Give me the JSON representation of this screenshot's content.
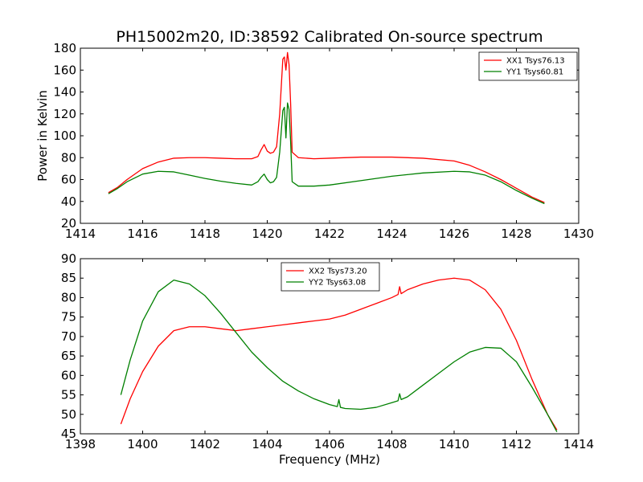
{
  "figure": {
    "title": "PH15002m20, ID:38592 Calibrated On-source spectrum"
  },
  "chart_data": [
    {
      "type": "line",
      "title": "PH15002m20, ID:38592 Calibrated On-source spectrum",
      "xlabel": "",
      "ylabel": "Power in Kelvin",
      "xlim": [
        1414,
        1430
      ],
      "ylim": [
        20,
        180
      ],
      "xticks": [
        1414,
        1416,
        1418,
        1420,
        1422,
        1424,
        1426,
        1428,
        1430
      ],
      "yticks": [
        20,
        40,
        60,
        80,
        100,
        120,
        140,
        160,
        180
      ],
      "grid": false,
      "legend": "top-right",
      "series": [
        {
          "name": "XX1 Tsys76.13",
          "color": "#ff0000",
          "x": [
            1414.9,
            1415.2,
            1415.5,
            1416.0,
            1416.5,
            1417.0,
            1417.5,
            1418.0,
            1418.5,
            1419.0,
            1419.5,
            1419.7,
            1419.8,
            1419.9,
            1420.0,
            1420.1,
            1420.2,
            1420.3,
            1420.4,
            1420.5,
            1420.55,
            1420.6,
            1420.65,
            1420.7,
            1420.75,
            1420.8,
            1421.0,
            1421.5,
            1422.0,
            1423.0,
            1424.0,
            1425.0,
            1426.0,
            1426.5,
            1427.0,
            1427.5,
            1428.0,
            1428.5,
            1428.9
          ],
          "y": [
            48,
            53,
            60,
            70,
            76,
            79.5,
            80,
            80,
            79.5,
            79,
            79,
            81,
            87,
            92,
            86,
            84,
            85,
            90,
            120,
            170,
            172,
            160,
            176,
            165,
            130,
            85,
            80,
            79,
            79.5,
            80.5,
            80.5,
            79.5,
            77,
            73,
            67,
            60,
            52,
            44,
            39
          ]
        },
        {
          "name": "YY1 Tsys60.81",
          "color": "#008000",
          "x": [
            1414.9,
            1415.2,
            1415.5,
            1416.0,
            1416.5,
            1417.0,
            1417.5,
            1418.0,
            1418.5,
            1419.0,
            1419.5,
            1419.7,
            1419.8,
            1419.9,
            1420.0,
            1420.1,
            1420.2,
            1420.3,
            1420.4,
            1420.5,
            1420.55,
            1420.6,
            1420.65,
            1420.7,
            1420.75,
            1420.8,
            1421.0,
            1421.5,
            1422.0,
            1423.0,
            1424.0,
            1425.0,
            1426.0,
            1426.5,
            1427.0,
            1427.5,
            1428.0,
            1428.5,
            1428.9
          ],
          "y": [
            47,
            52,
            58,
            65,
            67.5,
            67,
            64,
            61,
            58.5,
            56.5,
            55,
            58,
            62,
            65,
            60,
            57,
            58,
            62,
            85,
            123,
            126,
            98,
            130,
            124,
            95,
            58,
            54,
            54,
            55,
            59,
            63,
            66,
            67.5,
            67,
            64,
            58,
            50,
            43,
            38
          ]
        }
      ]
    },
    {
      "type": "line",
      "title": "",
      "xlabel": "Frequency (MHz)",
      "ylabel": "",
      "xlim": [
        1398,
        1414
      ],
      "ylim": [
        45,
        90
      ],
      "xticks": [
        1398,
        1400,
        1402,
        1404,
        1406,
        1408,
        1410,
        1412,
        1414
      ],
      "yticks": [
        45,
        50,
        55,
        60,
        65,
        70,
        75,
        80,
        85,
        90
      ],
      "grid": false,
      "legend": "top-center",
      "series": [
        {
          "name": "XX2 Tsys73.20",
          "color": "#ff0000",
          "x": [
            1399.3,
            1399.6,
            1400.0,
            1400.5,
            1401.0,
            1401.5,
            1402.0,
            1402.5,
            1403.0,
            1403.5,
            1404.0,
            1404.5,
            1405.0,
            1405.5,
            1406.0,
            1406.5,
            1407.0,
            1407.5,
            1408.0,
            1408.2,
            1408.25,
            1408.3,
            1408.5,
            1409.0,
            1409.5,
            1410.0,
            1410.5,
            1411.0,
            1411.5,
            1412.0,
            1412.5,
            1413.0,
            1413.3
          ],
          "y": [
            47.5,
            54,
            61,
            67.5,
            71.5,
            72.5,
            72.5,
            72,
            71.5,
            72,
            72.5,
            73,
            73.5,
            74,
            74.5,
            75.5,
            77,
            78.5,
            80,
            80.8,
            82.8,
            81,
            82,
            83.5,
            84.5,
            85,
            84.5,
            82,
            77,
            69,
            59,
            50,
            46
          ]
        },
        {
          "name": "YY2 Tsys63.08",
          "color": "#008000",
          "x": [
            1399.3,
            1399.6,
            1400.0,
            1400.5,
            1401.0,
            1401.5,
            1402.0,
            1402.5,
            1403.0,
            1403.5,
            1404.0,
            1404.5,
            1405.0,
            1405.5,
            1406.0,
            1406.25,
            1406.3,
            1406.35,
            1406.5,
            1407.0,
            1407.5,
            1408.0,
            1408.2,
            1408.25,
            1408.3,
            1408.5,
            1409.0,
            1409.5,
            1410.0,
            1410.5,
            1411.0,
            1411.5,
            1412.0,
            1412.5,
            1413.0,
            1413.3
          ],
          "y": [
            55,
            64,
            74,
            81.5,
            84.5,
            83.5,
            80.5,
            76,
            71,
            66,
            62,
            58.5,
            56,
            54,
            52.5,
            52,
            53.8,
            51.8,
            51.5,
            51.3,
            51.8,
            53,
            53.5,
            55.3,
            53.8,
            54.5,
            57.5,
            60.5,
            63.5,
            66,
            67.2,
            67,
            63.5,
            57,
            50,
            45.5
          ]
        }
      ]
    }
  ]
}
